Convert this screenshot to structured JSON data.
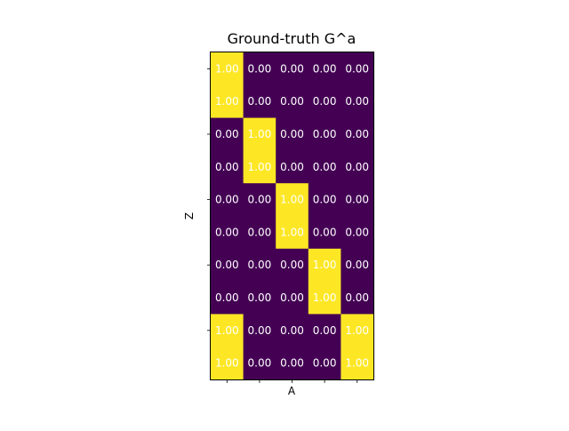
{
  "chart_data": {
    "type": "heatmap",
    "title": "Ground-truth G^a",
    "xlabel": "A",
    "ylabel": "Z",
    "x_tick_labels": [
      "",
      "",
      "",
      "",
      ""
    ],
    "y_tick_labels": [
      "",
      "",
      "",
      "",
      ""
    ],
    "colormap": "viridis",
    "vmin": 0,
    "vmax": 1,
    "cell_label_format": "0.00",
    "cell_label_color": "#ffffff",
    "colors": {
      "low": "#440154",
      "high": "#fde725"
    },
    "values": [
      [
        1,
        0,
        0,
        0,
        0
      ],
      [
        1,
        0,
        0,
        0,
        0
      ],
      [
        0,
        1,
        0,
        0,
        0
      ],
      [
        0,
        1,
        0,
        0,
        0
      ],
      [
        0,
        0,
        1,
        0,
        0
      ],
      [
        0,
        0,
        1,
        0,
        0
      ],
      [
        0,
        0,
        0,
        1,
        0
      ],
      [
        0,
        0,
        0,
        1,
        0
      ],
      [
        1,
        0,
        0,
        0,
        1
      ],
      [
        1,
        0,
        0,
        0,
        1
      ]
    ]
  }
}
